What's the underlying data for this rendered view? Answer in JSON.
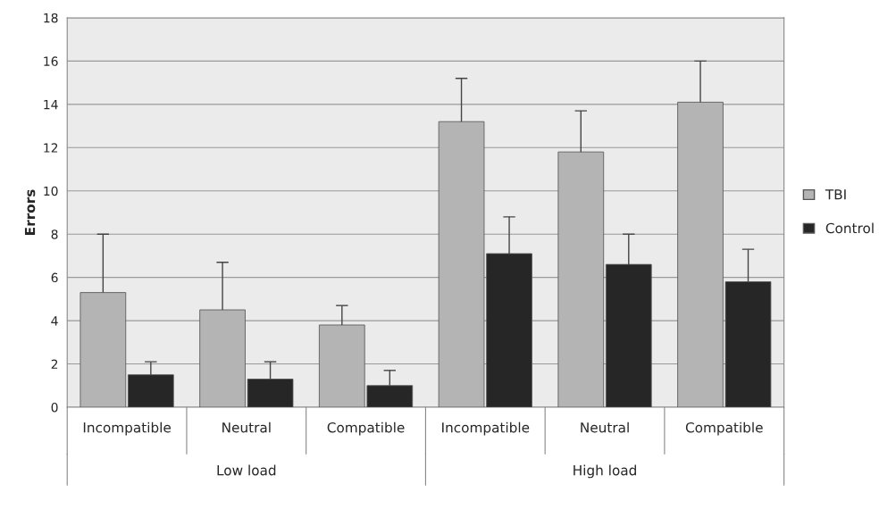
{
  "chart_data": {
    "type": "bar",
    "ylabel": "Errors",
    "categories": [
      "Incompatible",
      "Neutral",
      "Compatible",
      "Incompatible",
      "Neutral",
      "Compatible"
    ],
    "series": [
      {
        "name": "TBI",
        "color": "#b4b4b4",
        "values": [
          5.3,
          4.5,
          3.8,
          13.2,
          11.8,
          14.1
        ],
        "errors": [
          [
            5.3,
            8.0
          ],
          [
            4.5,
            6.7
          ],
          [
            3.8,
            4.7
          ],
          [
            13.2,
            15.2
          ],
          [
            11.8,
            13.7
          ],
          [
            14.1,
            16.0
          ]
        ]
      },
      {
        "name": "Control",
        "color": "#262626",
        "values": [
          1.5,
          1.3,
          1.0,
          7.1,
          6.6,
          5.8
        ],
        "errors": [
          [
            1.5,
            2.1
          ],
          [
            1.3,
            2.1
          ],
          [
            1.0,
            1.7
          ],
          [
            7.1,
            8.8
          ],
          [
            6.6,
            8.0
          ],
          [
            5.8,
            7.3
          ]
        ]
      }
    ],
    "ylim": [
      0,
      18
    ],
    "yticks": [
      0,
      2,
      4,
      6,
      8,
      10,
      12,
      14,
      16,
      18
    ],
    "grid": "y",
    "legend": "right",
    "annotations": [
      "Low load",
      "High load"
    ]
  }
}
